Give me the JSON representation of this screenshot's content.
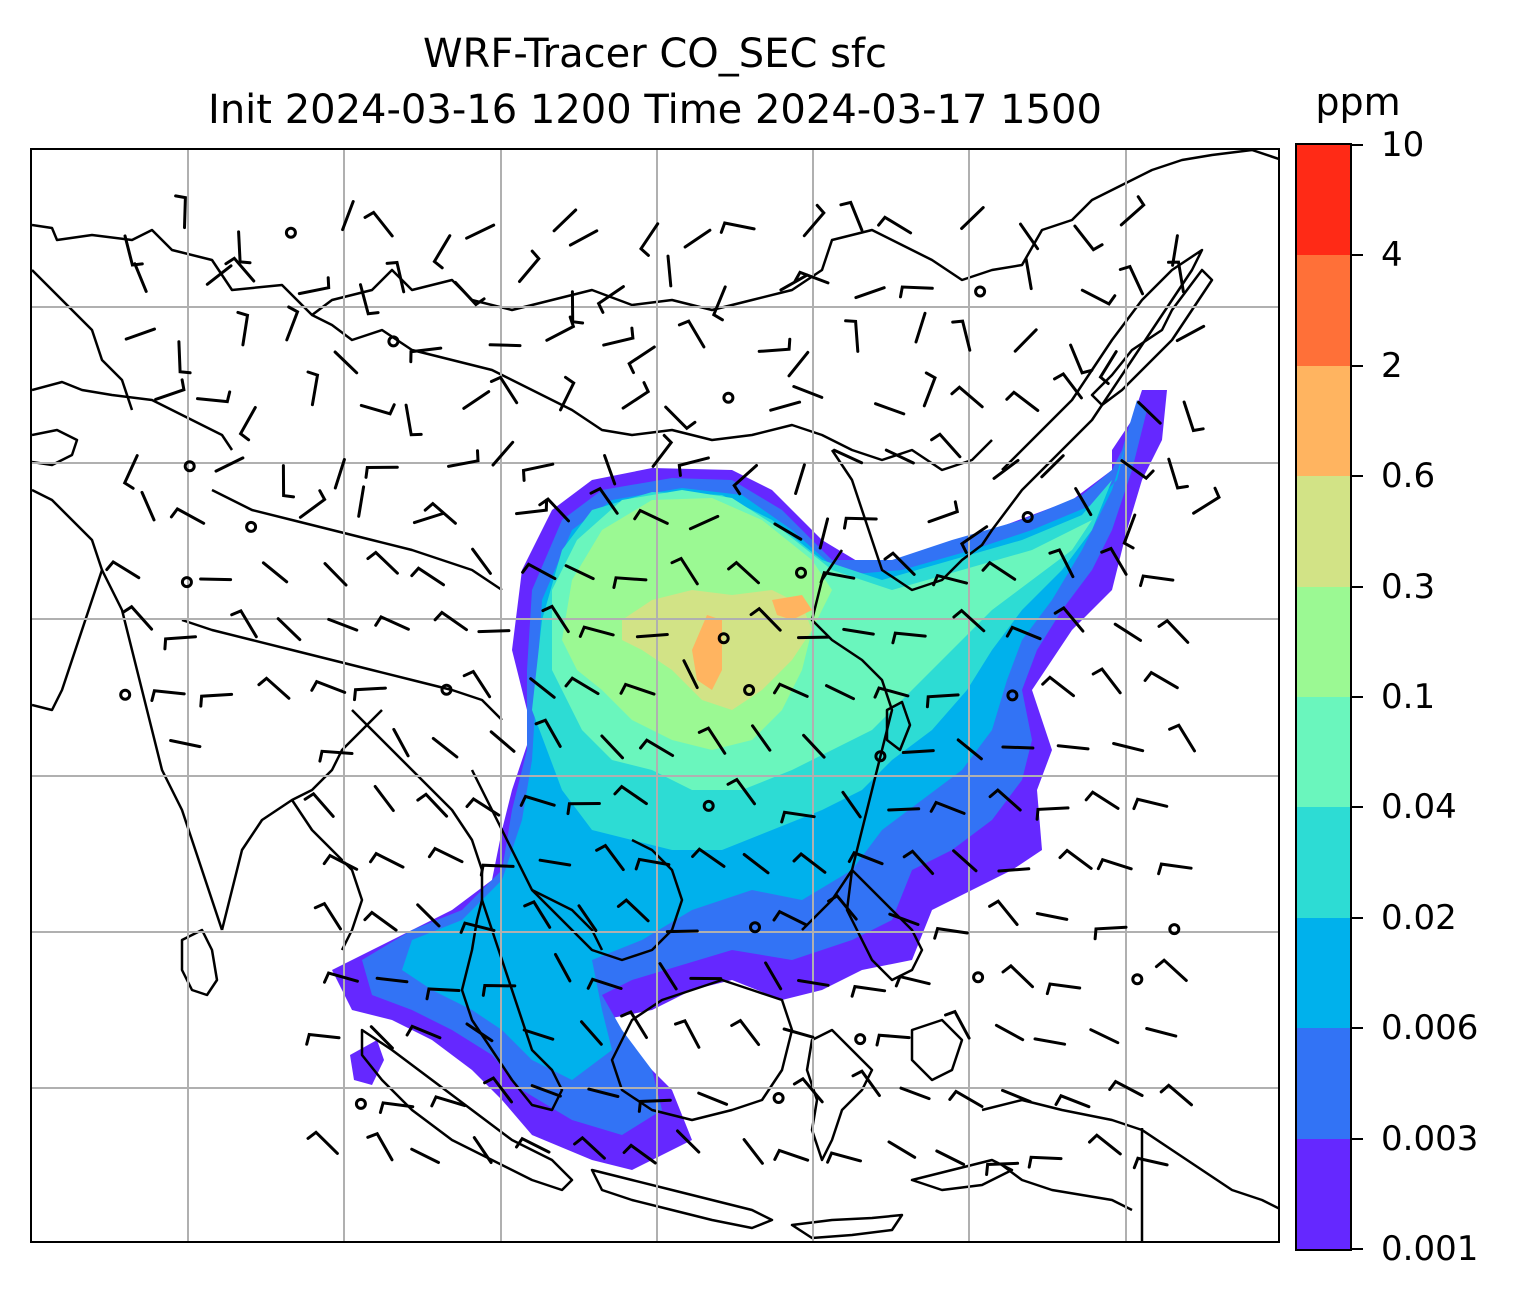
{
  "title": {
    "line1": "WRF-Tracer CO_SEC sfc",
    "line2": "Init 2024-03-16 1200 Time 2024-03-17 1500"
  },
  "colorbar": {
    "unit": "ppm",
    "ticks": [
      "0.001",
      "0.003",
      "0.006",
      "0.02",
      "0.04",
      "0.1",
      "0.3",
      "0.6",
      "2",
      "4",
      "10"
    ],
    "colors": [
      "#6528ff",
      "#3273f5",
      "#00b1ec",
      "#2ddcd4",
      "#6af6bd",
      "#9bf993",
      "#d2e386",
      "#ffb460",
      "#ff7038",
      "#ff2a16"
    ]
  },
  "map": {
    "projection": "lat-lon",
    "gridlines": true,
    "region": "East and Southeast Asia",
    "variable": "CO_SEC surface tracer concentration with wind barbs",
    "colors": {
      "coastline": "#000000",
      "grid": "#b0b0b0",
      "barb": "#000000"
    }
  }
}
